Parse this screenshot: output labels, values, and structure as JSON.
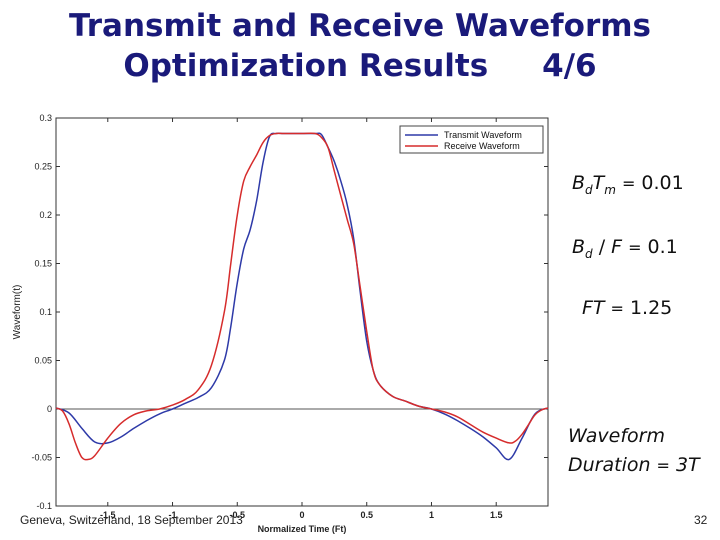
{
  "title": {
    "line1": "Transmit and Receive Waveforms",
    "line2": "Optimization Results",
    "page": "4/6"
  },
  "equations": {
    "eq1": {
      "lhs_main": "B",
      "lhs_sub": "d",
      "lhs_main2": "T",
      "lhs_sub2": "m",
      "op": "=",
      "rhs": "0.01"
    },
    "eq2": {
      "lhs_main": "B",
      "lhs_sub": "d",
      "slash": "/",
      "lhs_main2": "F",
      "op": "=",
      "rhs": "0.1"
    },
    "eq3": {
      "lhs": "FT",
      "op": "=",
      "rhs": "1.25"
    },
    "duration": {
      "line1": "Waveform",
      "line2_a": "Duration",
      "op": "=",
      "rhs": "3T"
    }
  },
  "footer": {
    "text": "Geneva, Switzerland, 18 September 2013",
    "page_number": "32"
  },
  "colors": {
    "transmit": "#2e3aa8",
    "receive": "#d62c2c",
    "title": "#1a1a7a"
  },
  "chart_data": {
    "type": "line",
    "xlabel": "Normalized Time (Ft)",
    "ylabel": "Waveform(t)",
    "xlim": [
      -1.9,
      1.9
    ],
    "ylim": [
      -0.1,
      0.3
    ],
    "x_ticks": [
      -1.5,
      -1,
      -0.5,
      0,
      0.5,
      1,
      1.5
    ],
    "x_tick_labels": [
      "-1.5",
      "-1",
      "-0.5",
      "0",
      "0.5",
      "1",
      "1.5"
    ],
    "y_ticks": [
      -0.1,
      -0.05,
      0,
      0.05,
      0.1,
      0.15,
      0.2,
      0.25,
      0.3
    ],
    "y_tick_labels": [
      "-0.1",
      "-0.05",
      "0",
      "0.05",
      "0.1",
      "0.15",
      "0.2",
      "0.25",
      "0.3"
    ],
    "legend_position": "top-right",
    "series": [
      {
        "name": "Transmit Waveform",
        "color": "#2e3aa8",
        "x": [
          -1.9,
          -1.8,
          -1.7,
          -1.6,
          -1.5,
          -1.4,
          -1.3,
          -1.2,
          -1.1,
          -1.0,
          -0.9,
          -0.8,
          -0.7,
          -0.6,
          -0.55,
          -0.5,
          -0.45,
          -0.4,
          -0.35,
          -0.3,
          -0.25,
          -0.2,
          -0.15,
          -0.1,
          0,
          0.1,
          0.15,
          0.2,
          0.25,
          0.3,
          0.35,
          0.4,
          0.45,
          0.5,
          0.55,
          0.6,
          0.7,
          0.8,
          0.9,
          1.0,
          1.1,
          1.2,
          1.3,
          1.4,
          1.5,
          1.6,
          1.7,
          1.8,
          1.9
        ],
        "y": [
          0.001,
          -0.004,
          -0.02,
          -0.034,
          -0.035,
          -0.029,
          -0.02,
          -0.012,
          -0.005,
          0.0,
          0.006,
          0.012,
          0.022,
          0.05,
          0.085,
          0.13,
          0.165,
          0.185,
          0.215,
          0.255,
          0.281,
          0.284,
          0.284,
          0.284,
          0.284,
          0.284,
          0.283,
          0.27,
          0.255,
          0.235,
          0.21,
          0.175,
          0.12,
          0.07,
          0.04,
          0.025,
          0.013,
          0.008,
          0.003,
          0.0,
          -0.005,
          -0.012,
          -0.02,
          -0.029,
          -0.04,
          -0.052,
          -0.03,
          -0.005,
          0.001
        ]
      },
      {
        "name": "Receive Waveform",
        "color": "#d62c2c",
        "x": [
          -1.9,
          -1.85,
          -1.8,
          -1.75,
          -1.7,
          -1.65,
          -1.6,
          -1.5,
          -1.4,
          -1.3,
          -1.2,
          -1.1,
          -1.0,
          -0.9,
          -0.8,
          -0.7,
          -0.6,
          -0.55,
          -0.5,
          -0.45,
          -0.4,
          -0.35,
          -0.3,
          -0.25,
          -0.2,
          -0.15,
          -0.1,
          0,
          0.1,
          0.15,
          0.2,
          0.25,
          0.3,
          0.35,
          0.4,
          0.45,
          0.5,
          0.55,
          0.6,
          0.7,
          0.8,
          0.9,
          1.0,
          1.1,
          1.2,
          1.3,
          1.4,
          1.5,
          1.6,
          1.65,
          1.7,
          1.75,
          1.8,
          1.85,
          1.9
        ],
        "y": [
          0.001,
          -0.002,
          -0.015,
          -0.035,
          -0.05,
          -0.052,
          -0.048,
          -0.03,
          -0.015,
          -0.006,
          -0.002,
          0.0,
          0.004,
          0.01,
          0.02,
          0.045,
          0.1,
          0.15,
          0.2,
          0.235,
          0.25,
          0.262,
          0.275,
          0.282,
          0.284,
          0.284,
          0.284,
          0.284,
          0.284,
          0.28,
          0.27,
          0.245,
          0.22,
          0.195,
          0.17,
          0.125,
          0.08,
          0.04,
          0.025,
          0.013,
          0.008,
          0.003,
          0.0,
          -0.003,
          -0.008,
          -0.016,
          -0.024,
          -0.03,
          -0.035,
          -0.033,
          -0.026,
          -0.016,
          -0.006,
          -0.001,
          0.001
        ]
      }
    ]
  }
}
